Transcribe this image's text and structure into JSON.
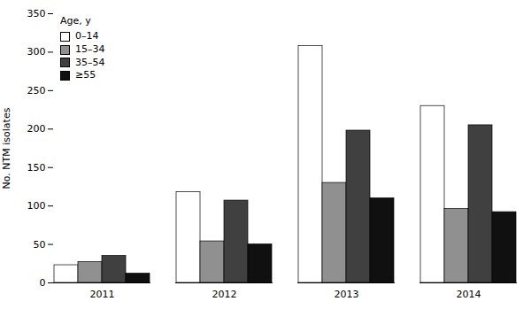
{
  "chart_data": {
    "type": "bar",
    "categories": [
      "2011",
      "2012",
      "2013",
      "2014"
    ],
    "series": [
      {
        "name": "0–14",
        "color": "#ffffff",
        "values": [
          23,
          118,
          308,
          230
        ]
      },
      {
        "name": "15–34",
        "color": "#909090",
        "values": [
          27,
          54,
          130,
          96
        ]
      },
      {
        "name": "35–54",
        "color": "#404040",
        "values": [
          35,
          107,
          198,
          205
        ]
      },
      {
        "name": "≥55",
        "color": "#101010",
        "values": [
          12,
          50,
          110,
          92
        ]
      }
    ],
    "ylabel": "No. NTM isolates",
    "ylim": [
      0,
      350
    ],
    "yticks": [
      0,
      50,
      100,
      150,
      200,
      250,
      300,
      350
    ],
    "legend": "upper left",
    "legend_title": "Age, y",
    "grid": false
  }
}
